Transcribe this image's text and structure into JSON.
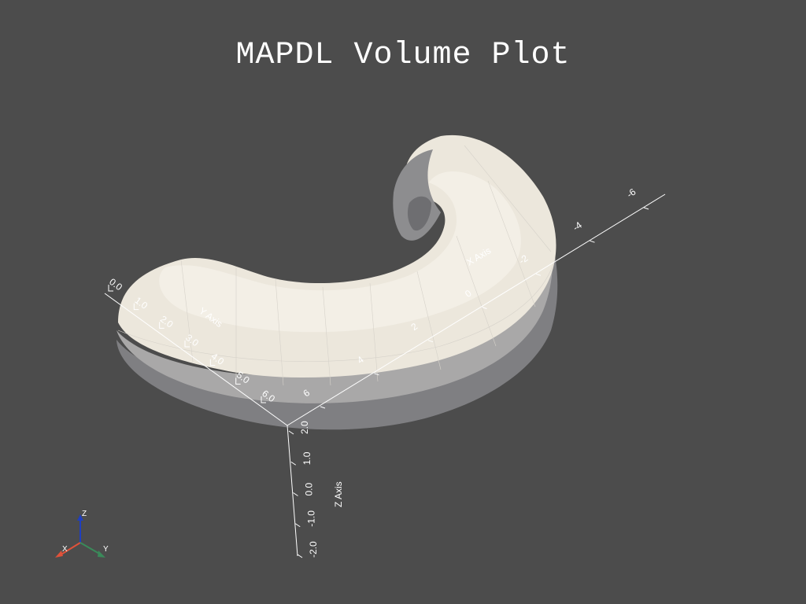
{
  "title": "MAPDL Volume Plot",
  "colors": {
    "background": "#4c4c4c",
    "mesh_light": "#ece7dc",
    "mesh_mid": "#cfcbc3",
    "mesh_dark": "#8c8c8e",
    "orient_x": "#e0523a",
    "orient_y": "#3a8a5a",
    "orient_z": "#1f3fc0"
  },
  "axes": {
    "y_axis": {
      "title": "Y Axis",
      "ticks": [
        "0.0",
        "1.0",
        "2.0",
        "3.0",
        "4.0",
        "5.0",
        "6.0"
      ]
    },
    "x_axis": {
      "title": "X Axis",
      "ticks": [
        "6",
        "4",
        "2",
        "0",
        "-2",
        "-4",
        "-6"
      ]
    },
    "z_axis": {
      "title": "Z Axis",
      "ticks": [
        "2.0",
        "1.0",
        "0.0",
        "-1.0",
        "-2.0"
      ]
    }
  },
  "orientation_widget": {
    "x": "X",
    "y": "Y",
    "z": "Z"
  }
}
